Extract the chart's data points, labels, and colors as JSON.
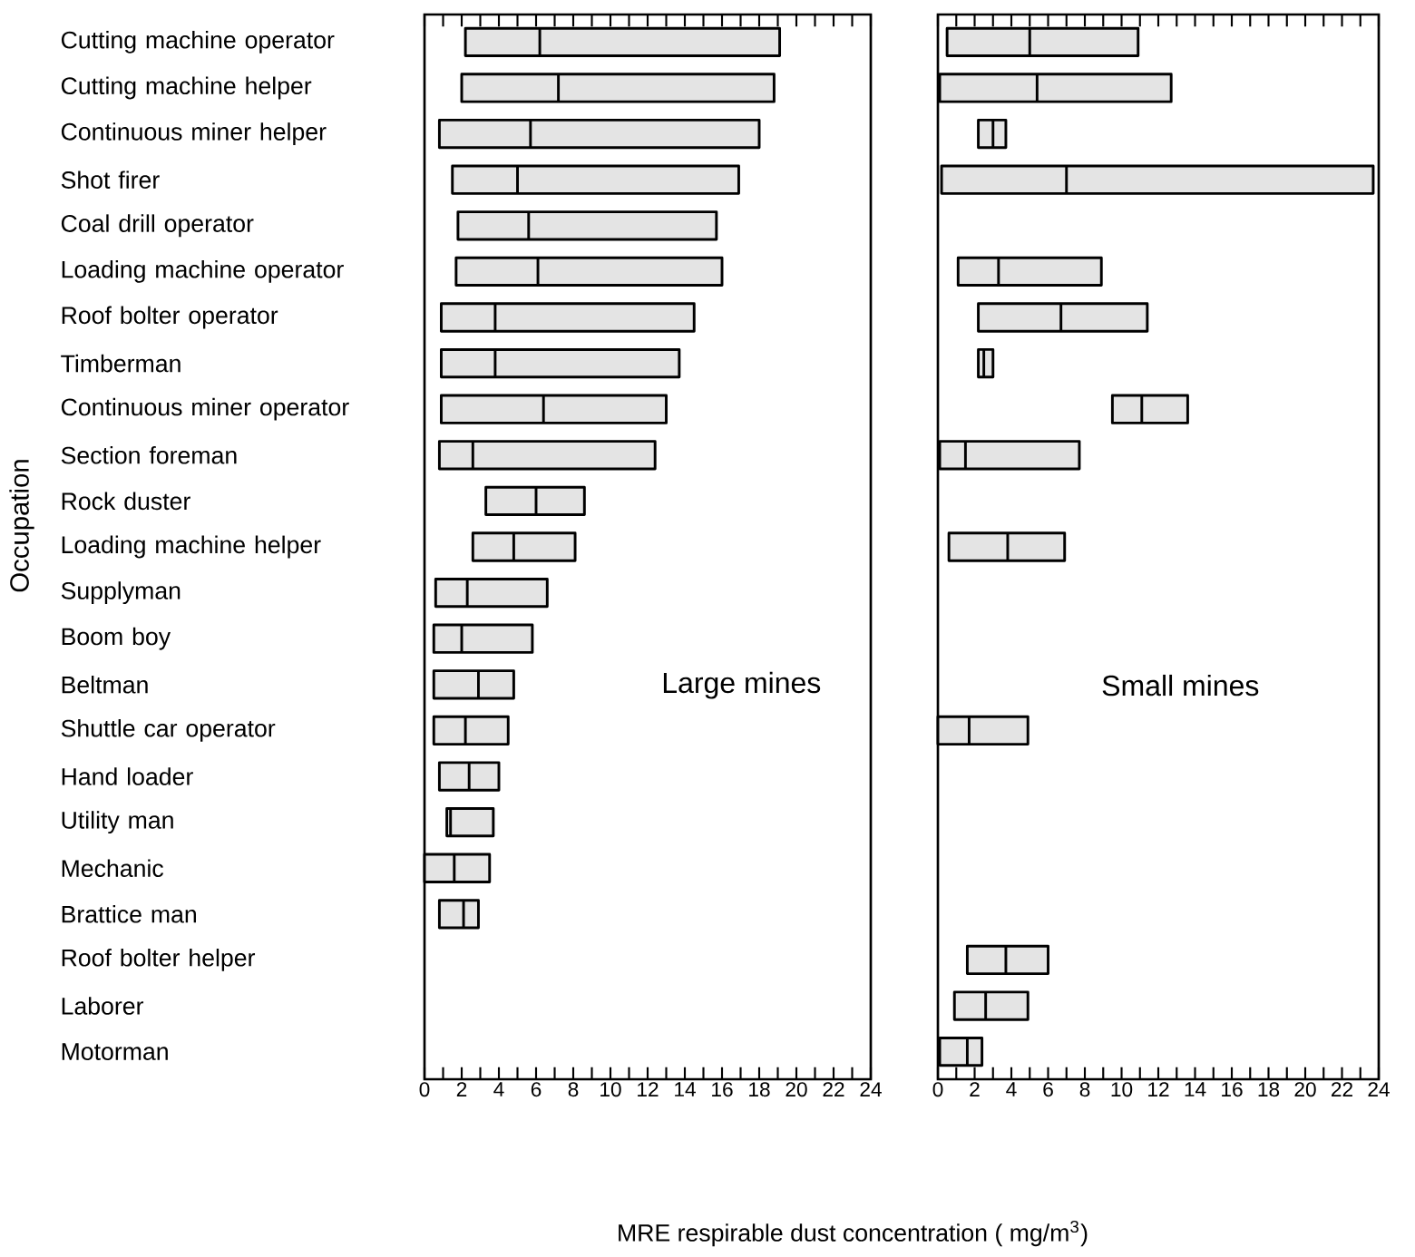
{
  "chart_data": [
    {
      "type": "box",
      "orientation": "horizontal",
      "title": "Large mines",
      "ylabel": "Occupation",
      "xlabel": "MRE respirable dust concentration ( mg/m$^{3}$)",
      "categories": [
        "Cutting machine operator",
        "Cutting machine helper",
        "Continuous miner helper",
        "Shot firer",
        "Coal drill operator",
        "Loading machine operator",
        "Roof bolter operator",
        "Timberman",
        "Continuous miner operator",
        "Section foreman",
        "Rock duster",
        "Loading machine helper",
        "Supplyman",
        "Boom boy",
        "Beltman",
        "Shuttle car operator",
        "Hand loader",
        "Utility man",
        "Mechanic",
        "Brattice man",
        "Roof bolter helper",
        "Laborer",
        "Motorman"
      ],
      "color": "#e4e4e4",
      "boxes": [
        {
          "low": 2.2,
          "q1": 2.2,
          "median": 6.2,
          "q3": 19.1,
          "high": 19.1
        },
        {
          "low": 2.0,
          "q1": 2.0,
          "median": 7.2,
          "q3": 18.8,
          "high": 18.8
        },
        {
          "low": 0.8,
          "q1": 0.8,
          "median": 5.7,
          "q3": 18.0,
          "high": 18.0
        },
        {
          "low": 1.5,
          "q1": 1.5,
          "median": 5.0,
          "q3": 16.9,
          "high": 16.9
        },
        {
          "low": 1.8,
          "q1": 1.8,
          "median": 5.6,
          "q3": 15.7,
          "high": 15.7
        },
        {
          "low": 1.7,
          "q1": 1.7,
          "median": 6.1,
          "q3": 16.0,
          "high": 16.0
        },
        {
          "low": 0.9,
          "q1": 0.9,
          "median": 3.8,
          "q3": 14.5,
          "high": 14.5
        },
        {
          "low": 0.9,
          "q1": 0.9,
          "median": 3.8,
          "q3": 13.7,
          "high": 13.7
        },
        {
          "low": 0.9,
          "q1": 0.9,
          "median": 6.4,
          "q3": 13.0,
          "high": 13.0
        },
        {
          "low": 0.8,
          "q1": 0.8,
          "median": 2.6,
          "q3": 12.4,
          "high": 12.4
        },
        {
          "low": 3.3,
          "q1": 3.3,
          "median": 6.0,
          "q3": 8.6,
          "high": 8.6
        },
        {
          "low": 2.6,
          "q1": 2.6,
          "median": 4.8,
          "q3": 8.1,
          "high": 8.1
        },
        {
          "low": 0.6,
          "q1": 0.6,
          "median": 2.3,
          "q3": 6.6,
          "high": 6.6
        },
        {
          "low": 0.5,
          "q1": 0.5,
          "median": 2.0,
          "q3": 5.8,
          "high": 5.8
        },
        {
          "low": 0.5,
          "q1": 0.5,
          "median": 2.9,
          "q3": 4.8,
          "high": 4.8
        },
        {
          "low": 0.5,
          "q1": 0.5,
          "median": 2.2,
          "q3": 4.5,
          "high": 4.5
        },
        {
          "low": 0.8,
          "q1": 0.8,
          "median": 2.4,
          "q3": 4.0,
          "high": 4.0
        },
        {
          "low": 1.2,
          "q1": 1.2,
          "median": 1.4,
          "q3": 3.7,
          "high": 3.7
        },
        {
          "low": 0.0,
          "q1": 0.0,
          "median": 1.6,
          "q3": 3.5,
          "high": 3.5
        },
        {
          "low": 0.8,
          "q1": 0.8,
          "median": 2.1,
          "q3": 2.9,
          "high": 2.9
        },
        null,
        null,
        null
      ],
      "xlim": [
        0,
        24
      ],
      "xticks": [
        0,
        {
          "value": 1,
          "label": null
        },
        2,
        {
          "value": 3,
          "label": null
        },
        4,
        {
          "value": 5,
          "label": null
        },
        6,
        {
          "value": 7,
          "label": null
        },
        8,
        {
          "value": 9,
          "label": null
        },
        10,
        {
          "value": 11,
          "label": null
        },
        12,
        {
          "value": 13,
          "label": null
        },
        14,
        {
          "value": 15,
          "label": null
        },
        16,
        {
          "value": 17,
          "label": null
        },
        18,
        {
          "value": 19,
          "label": null
        },
        20,
        {
          "value": 21,
          "label": null
        },
        22,
        {
          "value": 23,
          "label": null
        },
        24
      ]
    },
    {
      "type": "box",
      "orientation": "horizontal",
      "title": "Small mines",
      "tick_labels": "x",
      "categories": [
        null,
        null,
        null,
        null,
        null,
        null,
        null,
        null,
        null,
        null,
        null,
        null,
        null,
        null,
        null,
        null,
        null,
        null,
        null,
        null,
        null,
        null,
        null
      ],
      "color": "#e4e4e4",
      "boxes": [
        {
          "low": 0.5,
          "q1": 0.5,
          "median": 5.0,
          "q3": 10.9,
          "high": 10.9
        },
        {
          "low": 0.1,
          "q1": 0.1,
          "median": 5.4,
          "q3": 12.7,
          "high": 12.7
        },
        {
          "low": 2.2,
          "q1": 2.2,
          "median": 3.0,
          "q3": 3.7,
          "high": 3.7
        },
        {
          "low": 0.2,
          "q1": 0.2,
          "median": 7.0,
          "q3": 23.7,
          "high": 23.7
        },
        null,
        {
          "low": 1.1,
          "q1": 1.1,
          "median": 3.3,
          "q3": 8.9,
          "high": 8.9
        },
        {
          "low": 2.2,
          "q1": 2.2,
          "median": 6.7,
          "q3": 11.4,
          "high": 11.4
        },
        {
          "low": 2.2,
          "q1": 2.2,
          "median": 2.5,
          "q3": 3.0,
          "high": 3.0
        },
        {
          "low": 9.5,
          "q1": 9.5,
          "median": 11.1,
          "q3": 13.6,
          "high": 13.6
        },
        {
          "low": 0.1,
          "q1": 0.1,
          "median": 1.5,
          "q3": 7.7,
          "high": 7.7
        },
        null,
        {
          "low": 0.6,
          "q1": 0.6,
          "median": 3.8,
          "q3": 6.9,
          "high": 6.9
        },
        null,
        null,
        null,
        {
          "low": 0.0,
          "q1": 0.0,
          "median": 1.7,
          "q3": 4.9,
          "high": 4.9
        },
        null,
        null,
        null,
        null,
        {
          "low": 1.6,
          "q1": 1.6,
          "median": 3.7,
          "q3": 6.0,
          "high": 6.0
        },
        {
          "low": 0.9,
          "q1": 0.9,
          "median": 2.6,
          "q3": 4.9,
          "high": 4.9
        },
        {
          "low": 0.1,
          "q1": 0.1,
          "median": 1.6,
          "q3": 2.4,
          "high": 2.4
        }
      ],
      "xlim": [
        0,
        24
      ],
      "xticks": [
        0,
        {
          "value": 1,
          "label": null
        },
        2,
        {
          "value": 3,
          "label": null
        },
        4,
        {
          "value": 5,
          "label": null
        },
        6,
        {
          "value": 7,
          "label": null
        },
        8,
        {
          "value": 9,
          "label": null
        },
        10,
        {
          "value": 11,
          "label": null
        },
        12,
        {
          "value": 13,
          "label": null
        },
        14,
        {
          "value": 15,
          "label": null
        },
        16,
        {
          "value": 17,
          "label": null
        },
        18,
        {
          "value": 19,
          "label": null
        },
        20,
        {
          "value": 21,
          "label": null
        },
        22,
        {
          "value": 23,
          "label": null
        },
        24
      ]
    }
  ]
}
